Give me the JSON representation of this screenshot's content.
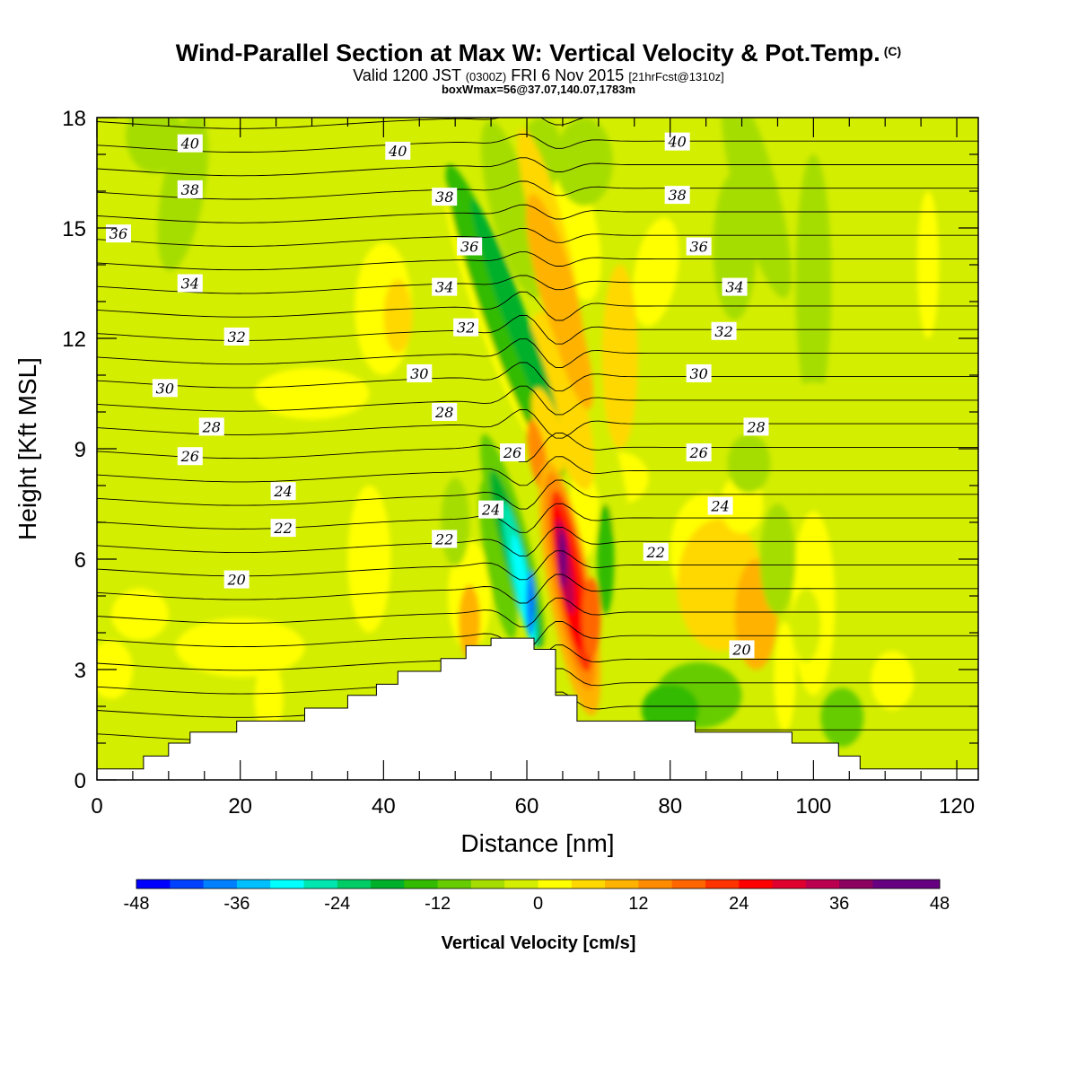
{
  "title": {
    "main": "Wind-Parallel Section at Max W: Vertical Velocity & Pot.Temp.",
    "copyright": "(C)",
    "valid_prefix": "Valid 1200 JST",
    "valid_z": "(0300Z)",
    "valid_date": "FRI 6 Nov 2015",
    "valid_fcst": "[21hrFcst@1310z]",
    "box": "boxWmax=56@37.07,140.07,1783m"
  },
  "chart_data": {
    "type": "heatmap",
    "xlabel": "Distance [nm]",
    "ylabel": "Height [Kft MSL]",
    "xlim": [
      0,
      123
    ],
    "ylim": [
      0,
      18
    ],
    "xticks": [
      0,
      20,
      40,
      60,
      80,
      100,
      120
    ],
    "yticks": [
      0,
      3,
      6,
      9,
      12,
      15,
      18
    ],
    "colorbar": {
      "title": "Vertical Velocity [cm/s]",
      "range": [
        -48,
        48
      ],
      "ticks": [
        -48,
        -36,
        -24,
        -12,
        0,
        12,
        24,
        36,
        48
      ],
      "colors": [
        "#0000ff",
        "#0040ff",
        "#0080ff",
        "#00bfff",
        "#00ffff",
        "#00e6b0",
        "#00cc66",
        "#00b02a",
        "#33bb00",
        "#66cc00",
        "#a6dd00",
        "#d4ee00",
        "#ffff00",
        "#ffd800",
        "#ffb200",
        "#ff8c00",
        "#ff6600",
        "#ff3300",
        "#ff0000",
        "#e00030",
        "#bb0050",
        "#8c0060",
        "#660080"
      ]
    },
    "terrain": [
      [
        0,
        0.3
      ],
      [
        6.5,
        0.3
      ],
      [
        6.5,
        0.65
      ],
      [
        10,
        0.65
      ],
      [
        10,
        1.0
      ],
      [
        13,
        1.0
      ],
      [
        13,
        1.3
      ],
      [
        19.5,
        1.3
      ],
      [
        19.5,
        1.6
      ],
      [
        29,
        1.6
      ],
      [
        29,
        1.95
      ],
      [
        35,
        1.95
      ],
      [
        35,
        2.3
      ],
      [
        39,
        2.3
      ],
      [
        39,
        2.6
      ],
      [
        42,
        2.6
      ],
      [
        42,
        2.95
      ],
      [
        48,
        2.95
      ],
      [
        48,
        3.3
      ],
      [
        51.5,
        3.3
      ],
      [
        51.5,
        3.65
      ],
      [
        55,
        3.65
      ],
      [
        55,
        3.85
      ],
      [
        61,
        3.85
      ],
      [
        61,
        3.55
      ],
      [
        64,
        3.55
      ],
      [
        64,
        2.3
      ],
      [
        67,
        2.3
      ],
      [
        67,
        1.6
      ],
      [
        83.5,
        1.6
      ],
      [
        83.5,
        1.3
      ],
      [
        97,
        1.3
      ],
      [
        97,
        1.0
      ],
      [
        103.5,
        1.0
      ],
      [
        103.5,
        0.65
      ],
      [
        106.5,
        0.65
      ],
      [
        106.5,
        0.3
      ],
      [
        123,
        0.3
      ]
    ],
    "series": [
      {
        "name": "20",
        "label": "20",
        "labels_at": [
          [
            19.5,
            5.45
          ],
          [
            90,
            3.55
          ]
        ]
      },
      {
        "name": "22",
        "label": "22",
        "labels_at": [
          [
            26,
            6.85
          ],
          [
            48.5,
            6.55
          ],
          [
            78,
            6.2
          ]
        ]
      },
      {
        "name": "24",
        "label": "24",
        "labels_at": [
          [
            26,
            7.85
          ],
          [
            55,
            7.35
          ],
          [
            87,
            7.45
          ]
        ]
      },
      {
        "name": "26",
        "label": "26",
        "labels_at": [
          [
            13,
            8.8
          ],
          [
            58,
            8.9
          ],
          [
            84,
            8.9
          ]
        ]
      },
      {
        "name": "28",
        "label": "28",
        "labels_at": [
          [
            16,
            9.6
          ],
          [
            48.5,
            10.0
          ],
          [
            92,
            9.6
          ]
        ]
      },
      {
        "name": "30",
        "label": "30",
        "labels_at": [
          [
            9.5,
            10.65
          ],
          [
            45,
            11.05
          ],
          [
            84,
            11.05
          ]
        ]
      },
      {
        "name": "32",
        "label": "32",
        "labels_at": [
          [
            19.5,
            12.05
          ],
          [
            51.5,
            12.3
          ],
          [
            87.5,
            12.2
          ]
        ]
      },
      {
        "name": "34",
        "label": "34",
        "labels_at": [
          [
            13,
            13.5
          ],
          [
            48.5,
            13.4
          ],
          [
            89,
            13.4
          ]
        ]
      },
      {
        "name": "36",
        "label": "36",
        "labels_at": [
          [
            3,
            14.85
          ],
          [
            52,
            14.5
          ],
          [
            84,
            14.5
          ]
        ]
      },
      {
        "name": "38",
        "label": "38",
        "labels_at": [
          [
            13,
            16.05
          ],
          [
            48.5,
            15.85
          ],
          [
            81,
            15.9
          ]
        ]
      },
      {
        "name": "40",
        "label": "40",
        "labels_at": [
          [
            13,
            17.3
          ],
          [
            42,
            17.1
          ],
          [
            81,
            17.35
          ]
        ]
      }
    ]
  }
}
